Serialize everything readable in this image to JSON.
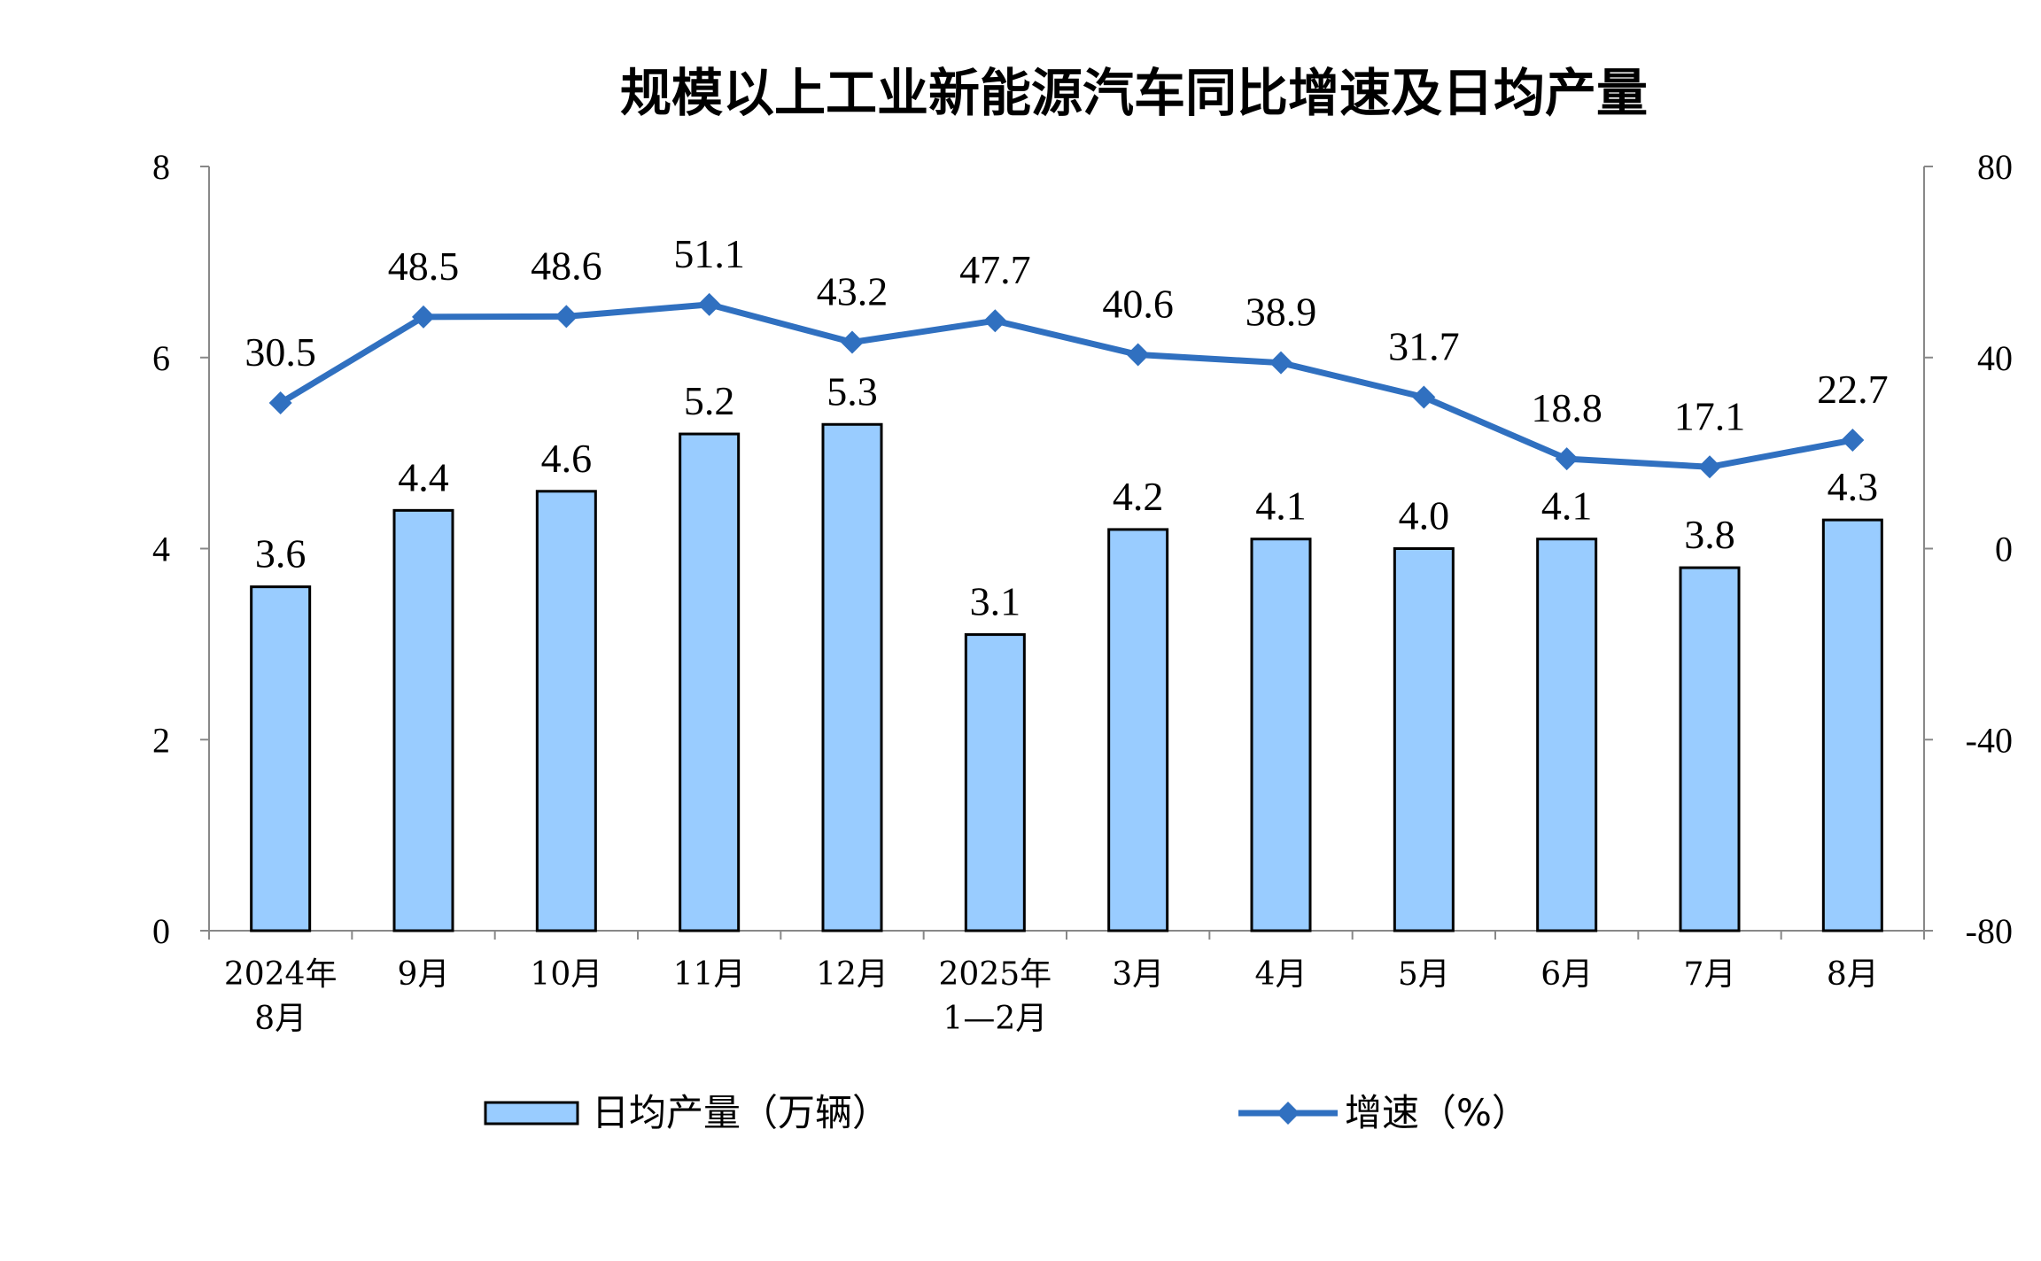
{
  "chart_data": {
    "type": "bar+line",
    "title": "规模以上工业新能源汽车同比增速及日均产量",
    "categories": [
      [
        "2024年",
        "8月"
      ],
      [
        "9月"
      ],
      [
        "10月"
      ],
      [
        "11月"
      ],
      [
        "12月"
      ],
      [
        "2025年",
        "1—2月"
      ],
      [
        "3月"
      ],
      [
        "4月"
      ],
      [
        "5月"
      ],
      [
        "6月"
      ],
      [
        "7月"
      ],
      [
        "8月"
      ]
    ],
    "series": [
      {
        "name": "日均产量（万辆）",
        "type": "bar",
        "axis": "left",
        "values": [
          3.6,
          4.4,
          4.6,
          5.2,
          5.3,
          3.1,
          4.2,
          4.1,
          4.0,
          4.1,
          3.8,
          4.3
        ],
        "labels": [
          "3.6",
          "4.4",
          "4.6",
          "5.2",
          "5.3",
          "3.1",
          "4.2",
          "4.1",
          "4.0",
          "4.1",
          "3.8",
          "4.3"
        ],
        "color": "#99CCFF"
      },
      {
        "name": "增速（%）",
        "type": "line",
        "axis": "right",
        "values": [
          30.5,
          48.5,
          48.6,
          51.1,
          43.2,
          47.7,
          40.6,
          38.9,
          31.7,
          18.8,
          17.1,
          22.7
        ],
        "labels": [
          "30.5",
          "48.5",
          "48.6",
          "51.1",
          "43.2",
          "47.7",
          "40.6",
          "38.9",
          "31.7",
          "18.8",
          "17.1",
          "22.7"
        ],
        "color": "#3070C0",
        "marker": "diamond"
      }
    ],
    "y_left": {
      "ylim": [
        0,
        8
      ],
      "ticks": [
        "0",
        "2",
        "4",
        "6",
        "8"
      ]
    },
    "y_right": {
      "ylim": [
        -80,
        80
      ],
      "ticks": [
        "-80",
        "-40",
        "0",
        "40",
        "80"
      ]
    },
    "grid": false,
    "legend": "bottom"
  }
}
